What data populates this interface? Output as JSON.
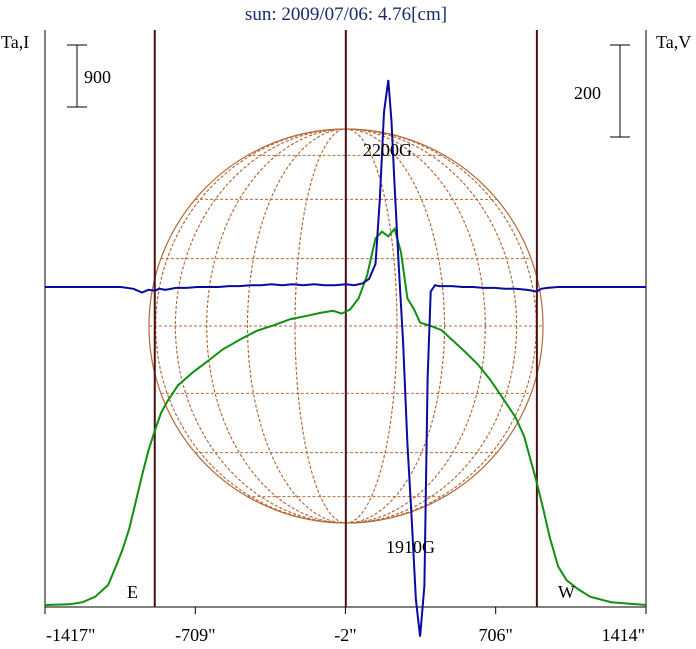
{
  "title": "sun: 2009/07/06: 4.76[cm]",
  "left_axis_label": "Ta,I",
  "right_axis_label": "Ta,V",
  "scale_bar_left": "900",
  "scale_bar_right": "200",
  "annotations": {
    "max_field": "2200G",
    "min_field": "1910G",
    "east": "E",
    "west": "W"
  },
  "colors": {
    "intensity": "#109010",
    "polarization": "#0a0a9c",
    "limb_lines": "#4a1010",
    "disk_grid": "#b5693a",
    "title": "#1a2a6a"
  },
  "chart_data": {
    "type": "line",
    "title": "sun: 2009/07/06: 4.76[cm]",
    "xlabel": "",
    "ylabel_left": "Ta,I",
    "ylabel_right": "Ta,V",
    "x_ticks": [
      {
        "value": -1417,
        "label": "-1417\""
      },
      {
        "value": -709,
        "label": "-709\""
      },
      {
        "value": -2,
        "label": "-2\""
      },
      {
        "value": 706,
        "label": "706\""
      },
      {
        "value": 1414,
        "label": "1414\""
      }
    ],
    "xlim": [
      -1417,
      1414
    ],
    "limb_positions": [
      -900,
      0,
      900
    ],
    "series": [
      {
        "name": "I",
        "color": "#109010",
        "x": [
          -1417,
          -1300,
          -1240,
          -1180,
          -1120,
          -1080,
          -1050,
          -1020,
          -990,
          -960,
          -930,
          -900,
          -870,
          -840,
          -790,
          -720,
          -650,
          -580,
          -500,
          -420,
          -340,
          -260,
          -180,
          -120,
          -60,
          -20,
          20,
          60,
          100,
          140,
          170,
          200,
          230,
          260,
          290,
          320,
          350,
          400,
          450,
          500,
          560,
          620,
          680,
          740,
          800,
          840,
          870,
          900,
          930,
          960,
          1000,
          1040,
          1090,
          1150,
          1250,
          1414
        ],
        "y": [
          0,
          10,
          40,
          120,
          290,
          580,
          820,
          1110,
          1490,
          1880,
          2240,
          2530,
          2790,
          2960,
          3190,
          3380,
          3540,
          3710,
          3850,
          3980,
          4060,
          4150,
          4200,
          4240,
          4270,
          4230,
          4290,
          4450,
          4780,
          5320,
          5420,
          5350,
          5460,
          5120,
          4450,
          4300,
          4100,
          4050,
          3990,
          3850,
          3680,
          3500,
          3270,
          3000,
          2720,
          2450,
          2110,
          1770,
          1390,
          990,
          560,
          360,
          240,
          120,
          40,
          0
        ]
      },
      {
        "name": "V",
        "color": "#0a0a9c",
        "x": [
          -1417,
          -1300,
          -1180,
          -1060,
          -1000,
          -960,
          -930,
          -900,
          -880,
          -850,
          -800,
          -750,
          -700,
          -650,
          -600,
          -550,
          -500,
          -450,
          -400,
          -350,
          -300,
          -250,
          -200,
          -150,
          -100,
          -50,
          0,
          40,
          80,
          110,
          140,
          160,
          180,
          200,
          215,
          230,
          250,
          270,
          290,
          310,
          330,
          350,
          370,
          385,
          400,
          420,
          440,
          460,
          500,
          550,
          600,
          650,
          700,
          750,
          800,
          850,
          880,
          900,
          920,
          950,
          1000,
          1100,
          1200,
          1300,
          1414
        ],
        "y": [
          0,
          0,
          0,
          0,
          -4,
          -12,
          -6,
          -8,
          -4,
          -6,
          -2,
          -2,
          0,
          0,
          0,
          2,
          2,
          4,
          4,
          6,
          4,
          6,
          4,
          6,
          4,
          4,
          6,
          4,
          8,
          18,
          50,
          190,
          380,
          450,
          360,
          220,
          40,
          -120,
          -340,
          -500,
          -680,
          -760,
          -650,
          -200,
          -10,
          4,
          2,
          2,
          2,
          0,
          0,
          -2,
          -2,
          -4,
          -4,
          -6,
          -8,
          -10,
          -4,
          -2,
          0,
          0,
          0,
          0,
          0
        ]
      }
    ],
    "y_left": {
      "scale_bar_value": 900
    },
    "y_right": {
      "scale_bar_value": 200
    },
    "annotations": [
      "2200G",
      "1910G",
      "E",
      "W"
    ],
    "grid": false,
    "legend": "none"
  }
}
